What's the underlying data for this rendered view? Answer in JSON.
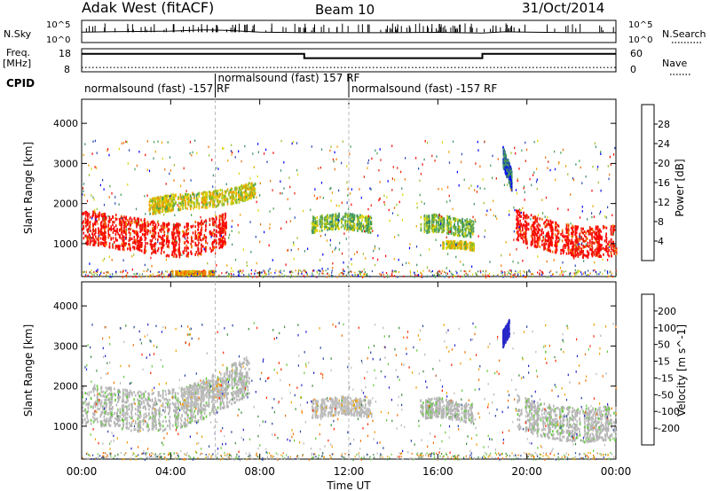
{
  "header": {
    "title": "Adak West (fitACF)",
    "beam": "Beam 10",
    "date": "31/Oct/2014"
  },
  "panels": {
    "nsky": {
      "left_label": "N.Sky",
      "right_label": "N.Search",
      "left_ticks": [
        "10^5",
        "10^0"
      ],
      "right_ticks": [
        "10^5",
        "10^0"
      ]
    },
    "freq": {
      "left_label": "Freq.",
      "left_unit": "[MHz]",
      "right_label": "Nave",
      "left_ticks": [
        "18",
        "8"
      ],
      "right_ticks": [
        "60",
        "0"
      ]
    },
    "cpid": {
      "label": "CPID"
    }
  },
  "colorbars": {
    "power": {
      "label": "Power [dB]",
      "ticks": [
        "28",
        "24",
        "20",
        "16",
        "12",
        "8",
        "4"
      ]
    },
    "velocity": {
      "label": "Velocity [m s^-1]",
      "ticks": [
        "200",
        "100",
        "50",
        "15",
        "-15",
        "-50",
        "-100",
        "-200"
      ]
    }
  },
  "chart_data": [
    {
      "type": "line",
      "name": "nsky-nsearch",
      "x_unit": "hours UT",
      "y_scale": "log",
      "ylim": [
        1,
        100000
      ],
      "series": [
        {
          "name": "N.Sky",
          "x": [
            0,
            2,
            4,
            5.5,
            6.5,
            8,
            10,
            12,
            14,
            16,
            18,
            19,
            20,
            22,
            24
          ],
          "y": [
            200,
            300,
            400,
            800,
            600,
            200,
            150,
            150,
            150,
            180,
            120,
            250,
            200,
            150,
            150
          ]
        }
      ]
    },
    {
      "type": "line",
      "name": "freq-nave",
      "x_unit": "hours UT",
      "ylim": [
        8,
        18
      ],
      "series": [
        {
          "name": "Freq.",
          "x": [
            0,
            10,
            10,
            18,
            18,
            24
          ],
          "y": [
            16,
            16,
            14,
            14,
            16,
            16
          ]
        },
        {
          "name": "Nave",
          "x": [
            0,
            24
          ],
          "y": [
            10,
            10
          ]
        }
      ]
    },
    {
      "type": "table",
      "name": "cpid",
      "segments": [
        {
          "start_hour": 0,
          "end_hour": 6,
          "label": "normalsound (fast) -157 RF"
        },
        {
          "start_hour": 6,
          "end_hour": 12,
          "label": "normalsound (fast) 157 RF"
        },
        {
          "start_hour": 12,
          "end_hour": 24,
          "label": "normalsound (fast) -157 RF"
        }
      ]
    },
    {
      "type": "heatmap",
      "name": "power",
      "xlabel": "",
      "ylabel": "Slant Range [km]",
      "xlim": [
        0,
        24
      ],
      "ylim": [
        180,
        4600
      ],
      "yticks": [
        "1000",
        "2000",
        "3000",
        "4000"
      ],
      "clim": [
        0,
        30
      ],
      "regions": [
        {
          "x": [
            0,
            1.2,
            2.5,
            3.5,
            4.5,
            5.5,
            6.5
          ],
          "y": [
            1450,
            1350,
            1250,
            1150,
            1100,
            1200,
            1400
          ],
          "spread": 420,
          "value": 28
        },
        {
          "x": [
            3.0,
            4.0,
            5.0,
            6.0,
            7.0,
            7.8
          ],
          "y": [
            1950,
            2050,
            2100,
            2150,
            2250,
            2400
          ],
          "spread": 200,
          "value": 16
        },
        {
          "x": [
            10.3,
            11.0,
            11.7,
            12.4,
            13.0
          ],
          "y": [
            1500,
            1550,
            1600,
            1550,
            1500
          ],
          "spread": 200,
          "value": 12
        },
        {
          "x": [
            15.2,
            16.0,
            16.8,
            17.6
          ],
          "y": [
            1500,
            1550,
            1450,
            1400
          ],
          "spread": 220,
          "value": 12
        },
        {
          "x": [
            16.2,
            17.0,
            17.6
          ],
          "y": [
            1000,
            1000,
            950
          ],
          "spread": 90,
          "value": 16
        },
        {
          "x": [
            18.9,
            19.3
          ],
          "y": [
            3200,
            2600
          ],
          "spread": 250,
          "value": 6
        },
        {
          "x": [
            19.5,
            20.5,
            21.5,
            22.5,
            23.5,
            24
          ],
          "y": [
            1500,
            1300,
            1150,
            1050,
            1100,
            1100
          ],
          "spread": 380,
          "value": 28
        },
        {
          "x": [
            4.0,
            5.0,
            6.0
          ],
          "y": [
            300,
            300,
            300
          ],
          "spread": 40,
          "value": 20
        }
      ]
    },
    {
      "type": "heatmap",
      "name": "velocity",
      "xlabel": "Time UT",
      "ylabel": "Slant Range [km]",
      "xlim": [
        0,
        24
      ],
      "ylim": [
        180,
        4600
      ],
      "xticks": [
        "00:00",
        "04:00",
        "08:00",
        "12:00",
        "16:00",
        "20:00",
        "00:00"
      ],
      "yticks": [
        "1000",
        "2000",
        "3000",
        "4000"
      ],
      "clim": [
        -200,
        200
      ],
      "regions": [
        {
          "x": [
            0,
            1.2,
            2.5,
            3.5,
            4.5,
            5.5,
            6.5,
            7.5
          ],
          "y": [
            1600,
            1500,
            1400,
            1400,
            1500,
            1700,
            2000,
            2300
          ],
          "spread": 500,
          "value": 0
        },
        {
          "x": [
            4.5,
            5.5,
            6.5
          ],
          "y": [
            1700,
            1900,
            2000
          ],
          "spread": 250,
          "value": -40
        },
        {
          "x": [
            10.3,
            11.0,
            11.7,
            12.4,
            13.0
          ],
          "y": [
            1450,
            1500,
            1550,
            1500,
            1450
          ],
          "spread": 220,
          "value": -40
        },
        {
          "x": [
            15.2,
            16.0,
            16.8,
            17.6
          ],
          "y": [
            1450,
            1500,
            1400,
            1350
          ],
          "spread": 240,
          "value": 0
        },
        {
          "x": [
            19.5,
            20.5,
            21.5,
            22.5,
            23.5,
            24
          ],
          "y": [
            1400,
            1200,
            1100,
            1050,
            1100,
            1100
          ],
          "spread": 420,
          "value": 0
        },
        {
          "x": [
            18.9,
            19.2
          ],
          "y": [
            3200,
            3500
          ],
          "spread": 200,
          "value": 200
        }
      ]
    }
  ]
}
